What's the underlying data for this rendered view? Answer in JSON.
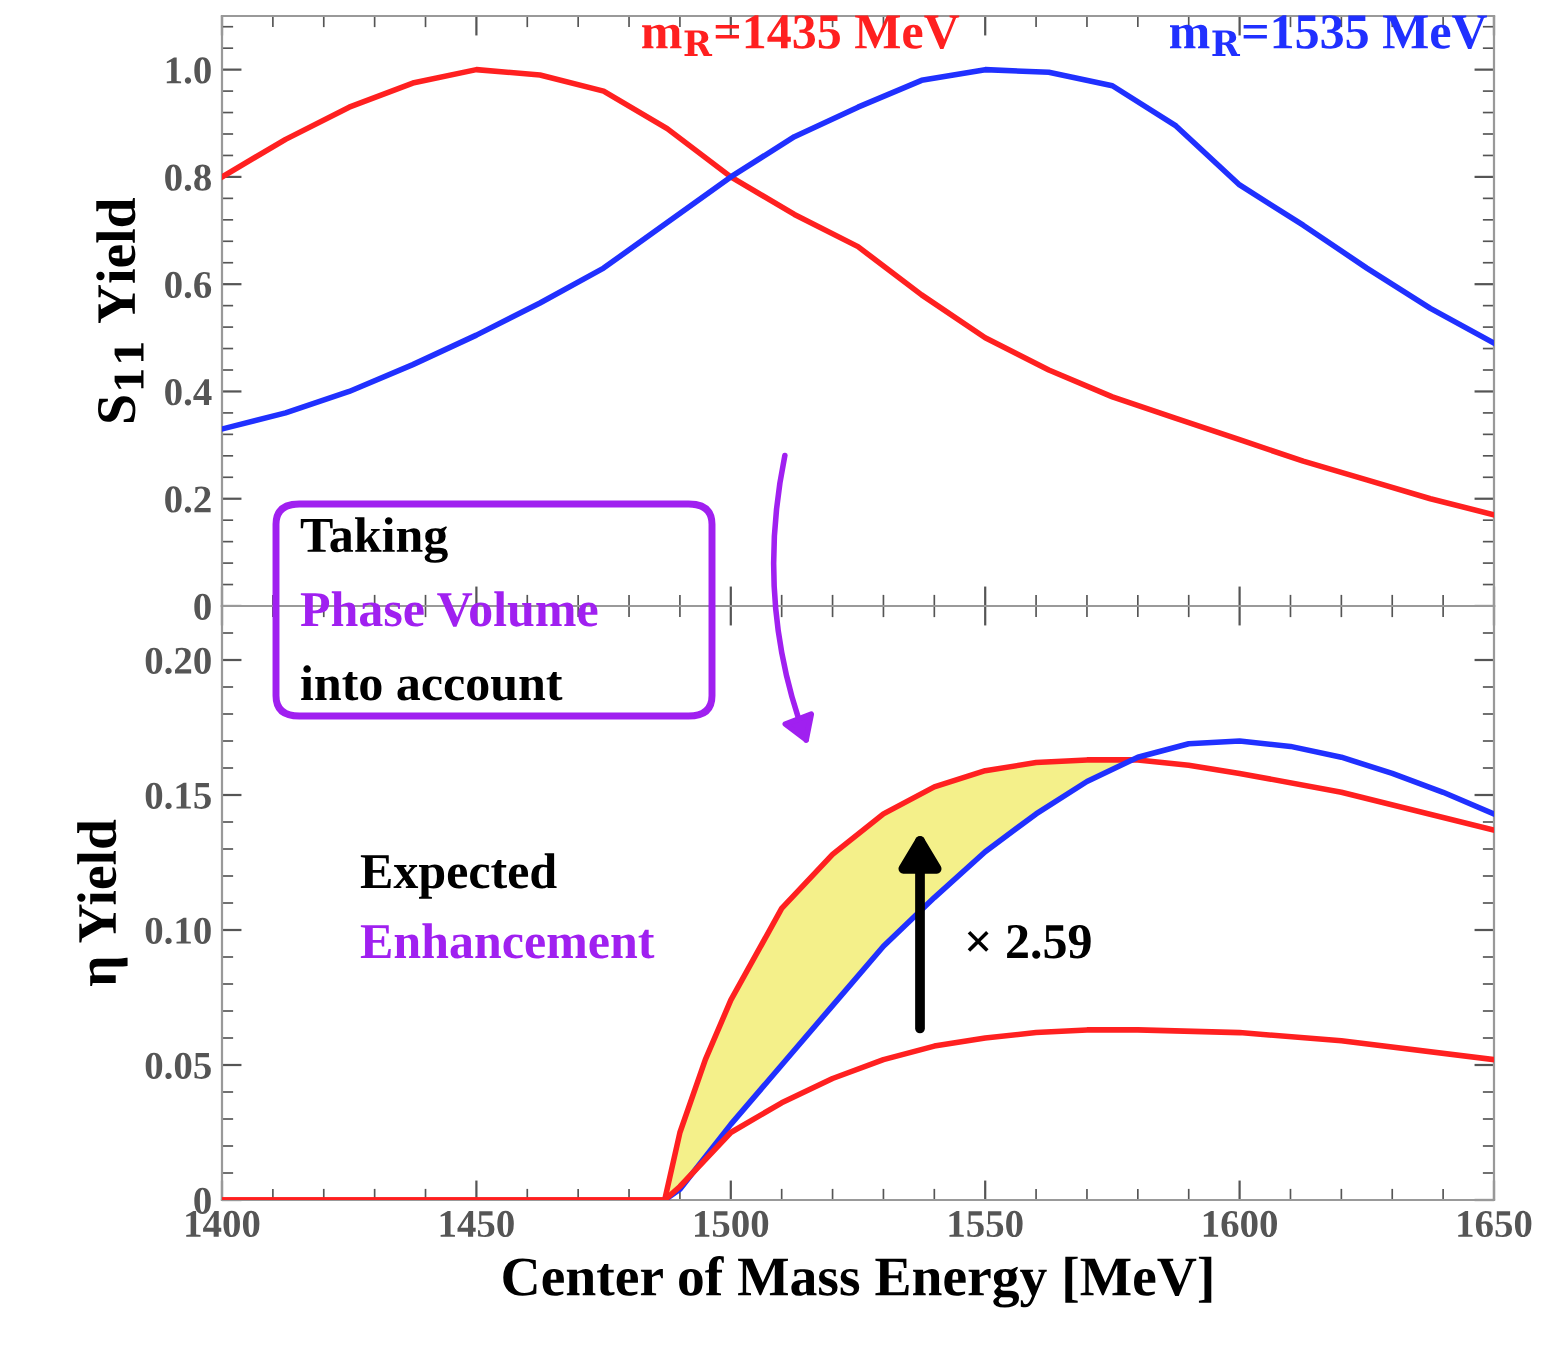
{
  "chart_data": [
    {
      "type": "line",
      "ylabel": "S$_{11}$ Yield",
      "xlim": [
        1400,
        1650
      ],
      "ylim": [
        0,
        1.1
      ],
      "xticks": [
        1400,
        1450,
        1500,
        1550,
        1600,
        1650
      ],
      "yticks": [
        0,
        0.2,
        0.4,
        0.6,
        0.8,
        {
          "value": 1,
          "label": "1.0"
        }
      ],
      "tick_labels": "y",
      "grid": false,
      "legend": false,
      "series": [
        {
          "name": "m$_{R}$=1435 MeV",
          "color": "#ff2020",
          "x": [
            1400,
            1412.5,
            1425,
            1437.5,
            1450,
            1462.5,
            1475,
            1487.5,
            1500,
            1512.5,
            1525,
            1537.5,
            1550,
            1562.5,
            1575,
            1587.5,
            1600,
            1612.5,
            1625,
            1637.5,
            1650
          ],
          "values": [
            0.8,
            0.87,
            0.93,
            0.975,
            1.0,
            0.99,
            0.96,
            0.89,
            0.8,
            0.73,
            0.67,
            0.58,
            0.5,
            0.44,
            0.39,
            0.35,
            0.31,
            0.27,
            0.235,
            0.2,
            0.17
          ]
        },
        {
          "name": "m$_{R}$=1535 MeV",
          "color": "#2030ff",
          "x": [
            1400,
            1412.5,
            1425,
            1437.5,
            1450,
            1462.5,
            1475,
            1487.5,
            1500,
            1512.5,
            1525,
            1537.5,
            1550,
            1562.5,
            1575,
            1587.5,
            1600,
            1612.5,
            1625,
            1637.5,
            1650
          ],
          "values": [
            0.33,
            0.36,
            0.4,
            0.45,
            0.505,
            0.565,
            0.63,
            0.715,
            0.8,
            0.875,
            0.93,
            0.98,
            1.0,
            0.995,
            0.97,
            0.895,
            0.785,
            0.71,
            0.63,
            0.555,
            0.49
          ]
        }
      ],
      "annotations": [
        "Taking",
        "Phase Volume",
        "into account"
      ]
    },
    {
      "type": "line",
      "xlabel": "Center of Mass Energy [MeV]",
      "ylabel": "η Yield",
      "xlim": [
        1400,
        1650
      ],
      "ylim": [
        0,
        0.22
      ],
      "xticks": [
        1400,
        1450,
        1500,
        1550,
        1600,
        1650
      ],
      "yticks": [
        0,
        0.05,
        {
          "value": 0.1,
          "label": "0.10"
        },
        0.15,
        {
          "value": 0.2,
          "label": "0.20"
        }
      ],
      "grid": false,
      "legend": false,
      "series": [
        {
          "color": "#ff2020",
          "x": [
            1400,
            1487,
            1490,
            1495,
            1500,
            1510,
            1520,
            1530,
            1540,
            1550,
            1560,
            1570,
            1580,
            1590,
            1600,
            1620,
            1650
          ],
          "values": [
            0,
            0,
            0.025,
            0.052,
            0.074,
            0.108,
            0.128,
            0.143,
            0.153,
            0.159,
            0.162,
            0.163,
            0.163,
            0.161,
            0.158,
            0.151,
            0.137
          ],
          "lower": [
            null,
            0,
            0.004,
            0.016,
            0.028,
            0.05,
            0.072,
            0.094,
            0.112,
            0.129,
            0.143,
            0.155,
            0.163,
            null,
            null,
            null,
            null
          ],
          "upper": [
            null,
            0,
            0.025,
            0.052,
            0.074,
            0.108,
            0.128,
            0.143,
            0.153,
            0.159,
            0.162,
            0.163,
            0.163,
            null,
            null,
            null,
            null
          ]
        },
        {
          "color": "#2030ff",
          "x": [
            1487,
            1490,
            1500,
            1510,
            1520,
            1530,
            1540,
            1550,
            1560,
            1570,
            1580,
            1590,
            1600,
            1610,
            1620,
            1630,
            1640,
            1650
          ],
          "values": [
            0,
            0.004,
            0.028,
            0.05,
            0.072,
            0.094,
            0.112,
            0.129,
            0.143,
            0.155,
            0.164,
            0.169,
            0.17,
            0.168,
            0.164,
            0.158,
            0.151,
            0.143
          ]
        },
        {
          "color": "#ff2020",
          "x": [
            1400,
            1487,
            1490,
            1500,
            1510,
            1520,
            1530,
            1540,
            1550,
            1560,
            1570,
            1580,
            1600,
            1620,
            1650
          ],
          "values": [
            0,
            0,
            0.005,
            0.025,
            0.036,
            0.045,
            0.052,
            0.057,
            0.06,
            0.062,
            0.063,
            0.063,
            0.062,
            0.059,
            0.052
          ]
        }
      ],
      "annotations": [
        "Expected",
        "Enhancement",
        "× 2.59"
      ]
    }
  ]
}
